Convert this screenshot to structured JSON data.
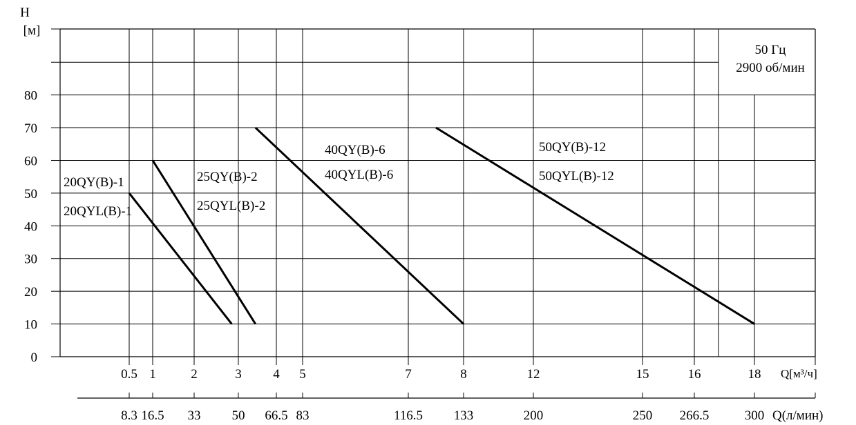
{
  "chart_data": {
    "type": "line",
    "y_axis_symbol": "H",
    "y_axis_unit": "[м]",
    "y_ticks": [
      "0",
      "10",
      "20",
      "30",
      "40",
      "50",
      "60",
      "70",
      "80"
    ],
    "x_ticks": [
      {
        "flow": 0.5,
        "label": "0.5"
      },
      {
        "flow": 1,
        "label": "1"
      },
      {
        "flow": 2,
        "label": "2"
      },
      {
        "flow": 3,
        "label": "3"
      },
      {
        "flow": 4,
        "label": "4"
      },
      {
        "flow": 5,
        "label": "5"
      },
      {
        "flow": 7,
        "label": "7"
      },
      {
        "flow": 8,
        "label": "8"
      },
      {
        "flow": 12,
        "label": "12"
      },
      {
        "flow": 15,
        "label": "15"
      },
      {
        "flow": 16,
        "label": "16"
      },
      {
        "flow": 18,
        "label": "18"
      }
    ],
    "x_label": "Q[м³/ч]",
    "x2_ticks": [
      {
        "flow": 0.5,
        "label": "8.3"
      },
      {
        "flow": 1,
        "label": "16.5"
      },
      {
        "flow": 2,
        "label": "33"
      },
      {
        "flow": 3,
        "label": "50"
      },
      {
        "flow": 4,
        "label": "66.5"
      },
      {
        "flow": 5,
        "label": "83"
      },
      {
        "flow": 7,
        "label": "116.5"
      },
      {
        "flow": 8,
        "label": "133"
      },
      {
        "flow": 12,
        "label": "200"
      },
      {
        "flow": 15,
        "label": "250"
      },
      {
        "flow": 16,
        "label": "266.5"
      },
      {
        "flow": 18,
        "label": "300"
      }
    ],
    "x2_label": "Q(л/мин)",
    "series": [
      {
        "names": [
          "20QY(B)-1",
          "20QYL(B)-1"
        ],
        "points": [
          [
            0.5,
            50
          ],
          [
            2.85,
            10
          ]
        ]
      },
      {
        "names": [
          "25QY(B)-2",
          "25QYL(B)-2"
        ],
        "points": [
          [
            1,
            60
          ],
          [
            3.45,
            10
          ]
        ]
      },
      {
        "names": [
          "40QY(B)-6",
          "40QYL(B)-6"
        ],
        "points": [
          [
            3.45,
            70
          ],
          [
            8,
            10
          ]
        ]
      },
      {
        "names": [
          "50QY(B)-12",
          "50QYL(B)-12"
        ],
        "points": [
          [
            7.5,
            70
          ],
          [
            18,
            10
          ]
        ]
      }
    ],
    "annotation": [
      "50 Гц",
      "2900 об/мин"
    ],
    "grid": true
  }
}
